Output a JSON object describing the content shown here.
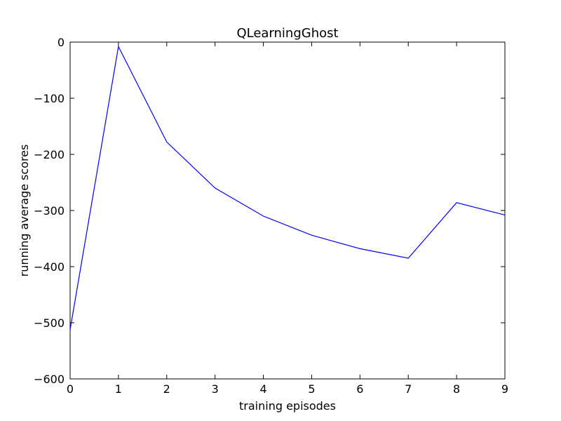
{
  "chart_data": {
    "type": "line",
    "title": "QLearningGhost",
    "xlabel": "training episodes",
    "ylabel": "running average scores",
    "xlim": [
      0,
      9
    ],
    "ylim": [
      -600,
      0
    ],
    "xticks": [
      0,
      1,
      2,
      3,
      4,
      5,
      6,
      7,
      8,
      9
    ],
    "yticks": [
      0,
      -100,
      -200,
      -300,
      -400,
      -500,
      -600
    ],
    "ytick_labels": [
      "0",
      "−100",
      "−200",
      "−300",
      "−400",
      "−500",
      "−600"
    ],
    "grid": false,
    "series": [
      {
        "color": "#0000ff",
        "x": [
          0,
          1,
          2,
          3,
          4,
          5,
          6,
          7,
          8,
          9
        ],
        "y": [
          -512,
          -8,
          -178,
          -260,
          -310,
          -344,
          -368,
          -385,
          -286,
          -308
        ]
      }
    ]
  }
}
